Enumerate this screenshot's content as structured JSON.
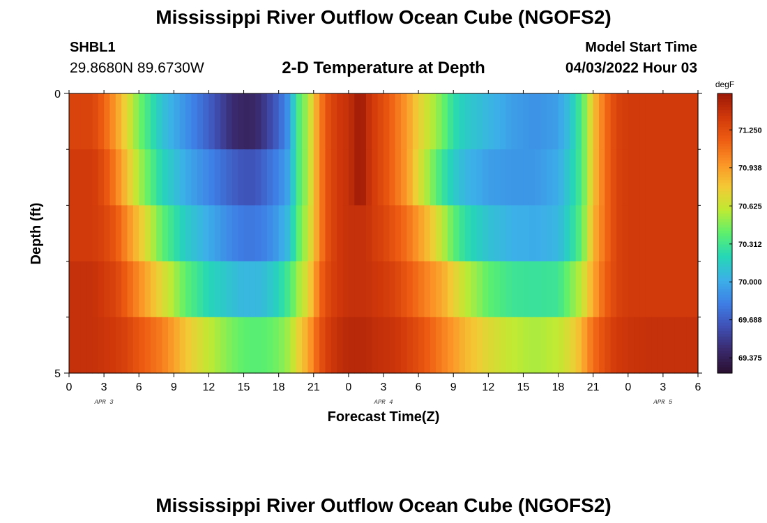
{
  "header": {
    "title": "Mississippi River Outflow Ocean Cube (NGOFS2)",
    "station": "SHBL1",
    "coords": "29.8680N  89.6730W",
    "subtitle": "2-D Temperature at Depth",
    "model_start_label": "Model Start Time",
    "model_start_value": "04/03/2022 Hour 03"
  },
  "footer": {
    "title": "Mississippi River Outflow Ocean Cube (NGOFS2)"
  },
  "chart_data": {
    "type": "heatmap",
    "xlabel": "Forecast Time(Z)",
    "ylabel": "Depth (ft)",
    "x_ticks": [
      "0",
      "3",
      "6",
      "9",
      "12",
      "15",
      "18",
      "21",
      "0",
      "3",
      "6",
      "9",
      "12",
      "15",
      "18",
      "21",
      "0",
      "3",
      "6"
    ],
    "date_labels": [
      "APR 3",
      "APR 4",
      "APR 5"
    ],
    "y_ticks": [
      "0",
      "5"
    ],
    "ylim": [
      0,
      5
    ],
    "colorbar": {
      "unit": "degF",
      "ticks": [
        "71.250",
        "70.938",
        "70.625",
        "70.312",
        "70.000",
        "69.688",
        "69.375"
      ],
      "range": [
        69.25,
        71.55
      ],
      "colors": [
        "#2a0f30",
        "#3a2a6e",
        "#3f50b5",
        "#3e7fe6",
        "#3cb0e8",
        "#25d7b6",
        "#5cf06e",
        "#bfea33",
        "#f4c935",
        "#fb9326",
        "#ee5d12",
        "#d0380a",
        "#9b1808"
      ]
    },
    "depth_layers": 5,
    "hours_start": 0,
    "hours_end": 54,
    "series": [
      {
        "hours": [
          0,
          2,
          3,
          4,
          5,
          6,
          8,
          10,
          12,
          14,
          15,
          16,
          17,
          18,
          19,
          19.5,
          20.5,
          21,
          21.5,
          22,
          23,
          24,
          25,
          25.5,
          26,
          27,
          28,
          29,
          30,
          31,
          32,
          33,
          34,
          36,
          38,
          40,
          42,
          43,
          44,
          44.5,
          45,
          46,
          47,
          48,
          50,
          52,
          54
        ],
        "temps": [
          71.3,
          71.3,
          71.15,
          70.95,
          70.7,
          70.45,
          70.1,
          69.9,
          69.7,
          69.45,
          69.4,
          69.42,
          69.55,
          69.72,
          69.95,
          70.3,
          70.55,
          70.8,
          71.0,
          71.2,
          71.35,
          71.4,
          71.55,
          71.45,
          71.35,
          71.25,
          71.1,
          70.95,
          70.75,
          70.6,
          70.45,
          70.25,
          70.15,
          70.05,
          69.95,
          69.9,
          69.95,
          70.1,
          70.35,
          70.55,
          70.8,
          71.1,
          71.3,
          71.35,
          71.35,
          71.35,
          71.35
        ]
      },
      {
        "hours": [
          0,
          2,
          3,
          4,
          5,
          6,
          8,
          10,
          12,
          14,
          15,
          16,
          17,
          18,
          19,
          19.5,
          20.5,
          21,
          21.5,
          22,
          23,
          24,
          25,
          25.5,
          26,
          27,
          28,
          29,
          30,
          31,
          32,
          33,
          34,
          36,
          38,
          40,
          42,
          43,
          44,
          44.5,
          45,
          46,
          47,
          48,
          50,
          52,
          54
        ],
        "temps": [
          71.35,
          71.35,
          71.25,
          71.05,
          70.8,
          70.55,
          70.2,
          70.0,
          69.85,
          69.7,
          69.65,
          69.65,
          69.75,
          69.85,
          70.0,
          70.3,
          70.55,
          70.8,
          71.0,
          71.2,
          71.35,
          71.4,
          71.55,
          71.45,
          71.35,
          71.25,
          71.1,
          70.95,
          70.7,
          70.5,
          70.3,
          70.15,
          70.05,
          69.95,
          69.92,
          69.92,
          70.0,
          70.15,
          70.35,
          70.55,
          70.8,
          71.1,
          71.3,
          71.35,
          71.35,
          71.35,
          71.35
        ]
      },
      {
        "hours": [
          0,
          2,
          3,
          4,
          5,
          6,
          8,
          10,
          12,
          14,
          15,
          16,
          17,
          18,
          19,
          19.5,
          20.5,
          21,
          21.5,
          22,
          23,
          24,
          25,
          25.5,
          26,
          27,
          28,
          29,
          30,
          31,
          32,
          33,
          34,
          36,
          38,
          40,
          42,
          43,
          44,
          44.5,
          45,
          46,
          47,
          48,
          50,
          52,
          54
        ],
        "temps": [
          71.35,
          71.35,
          71.3,
          71.2,
          71.0,
          70.8,
          70.4,
          70.15,
          70.0,
          69.85,
          69.8,
          69.8,
          69.85,
          69.95,
          70.1,
          70.35,
          70.6,
          70.8,
          71.0,
          71.2,
          71.35,
          71.4,
          71.4,
          71.4,
          71.35,
          71.3,
          71.2,
          71.1,
          70.95,
          70.8,
          70.6,
          70.4,
          70.25,
          70.1,
          70.02,
          70.0,
          70.05,
          70.2,
          70.4,
          70.6,
          70.85,
          71.1,
          71.3,
          71.35,
          71.35,
          71.35,
          71.35
        ]
      },
      {
        "hours": [
          0,
          2,
          3,
          4,
          5,
          6,
          8,
          10,
          12,
          14,
          15,
          16,
          17,
          18,
          19,
          19.5,
          20.5,
          21,
          21.5,
          22,
          23,
          24,
          25,
          25.5,
          26,
          27,
          28,
          29,
          30,
          31,
          32,
          33,
          34,
          36,
          38,
          40,
          42,
          43,
          44,
          44.5,
          45,
          46,
          47,
          48,
          50,
          52,
          54
        ],
        "temps": [
          71.4,
          71.4,
          71.35,
          71.3,
          71.15,
          71.0,
          70.7,
          70.4,
          70.2,
          70.1,
          70.05,
          70.05,
          70.1,
          70.2,
          70.35,
          70.5,
          70.7,
          70.9,
          71.1,
          71.25,
          71.35,
          71.4,
          71.4,
          71.4,
          71.38,
          71.35,
          71.3,
          71.2,
          71.1,
          71.0,
          70.9,
          70.75,
          70.6,
          70.4,
          70.3,
          70.28,
          70.3,
          70.45,
          70.6,
          70.75,
          70.9,
          71.15,
          71.3,
          71.35,
          71.35,
          71.35,
          71.35
        ]
      },
      {
        "hours": [
          0,
          2,
          3,
          4,
          5,
          6,
          8,
          10,
          12,
          14,
          15,
          16,
          17,
          18,
          19,
          19.5,
          20.5,
          21,
          21.5,
          22,
          23,
          24,
          25,
          25.5,
          26,
          27,
          28,
          29,
          30,
          31,
          32,
          33,
          34,
          36,
          38,
          40,
          42,
          43,
          44,
          44.5,
          45,
          46,
          47,
          48,
          50,
          52,
          54
        ],
        "temps": [
          71.4,
          71.4,
          71.38,
          71.35,
          71.3,
          71.2,
          71.05,
          70.8,
          70.6,
          70.45,
          70.4,
          70.38,
          70.4,
          70.45,
          70.55,
          70.7,
          70.9,
          71.05,
          71.2,
          71.3,
          71.4,
          71.45,
          71.45,
          71.45,
          71.42,
          71.4,
          71.38,
          71.32,
          71.25,
          71.15,
          71.05,
          70.95,
          70.85,
          70.7,
          70.6,
          70.55,
          70.6,
          70.7,
          70.85,
          71.0,
          71.1,
          71.25,
          71.35,
          71.38,
          71.4,
          71.4,
          71.4
        ]
      }
    ]
  }
}
